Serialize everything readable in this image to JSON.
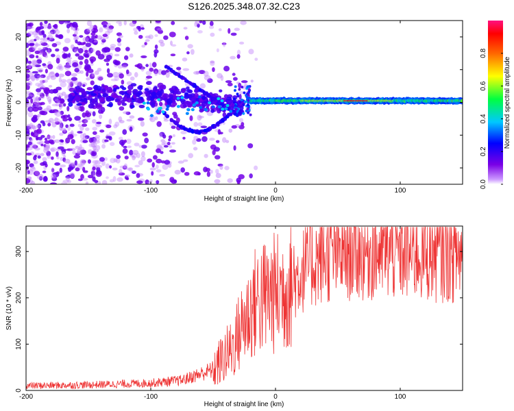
{
  "title": "S126.2025.348.07.32.C23",
  "colors": {
    "snr_line": "#ee3333",
    "axis": "#000000",
    "background": "#ffffff"
  },
  "chart_data": [
    {
      "type": "heatmap",
      "name": "spectrogram",
      "xlabel": "Height of straight line (km)",
      "ylabel": "Frequency (Hz)",
      "xlim": [
        -200,
        150
      ],
      "ylim": [
        -25,
        25
      ],
      "xticks": [
        -200,
        -100,
        0,
        100
      ],
      "yticks": [
        -20,
        -10,
        0,
        10,
        20
      ],
      "colorbar": {
        "label": "Normalized spectral amplitude",
        "range": [
          0,
          1
        ],
        "ticks": [
          "0.0",
          "0.2",
          "0.4",
          "0.6",
          "0.8"
        ],
        "tick_values": [
          0,
          0.2,
          0.4,
          0.6,
          0.8
        ],
        "colormap": "rainbow (violet-blue-cyan-green-yellow-red-magenta)"
      },
      "features": {
        "main_trace_frequency_hz": 0.5,
        "trace_start_km": -20,
        "scatter_region_km": [
          -200,
          -20
        ],
        "arc_track_km": [
          -90,
          -30
        ],
        "arc_peak_hz": 11
      }
    },
    {
      "type": "line",
      "name": "snr",
      "xlabel": "Height of straight line (km)",
      "ylabel": "SNR (10 * v/v)",
      "xlim": [
        -200,
        150
      ],
      "ylim": [
        0,
        355
      ],
      "xticks": [
        -200,
        -100,
        0,
        100
      ],
      "yticks": [
        0,
        100,
        200,
        300
      ],
      "trend": {
        "x": [
          -200,
          -150,
          -100,
          -75,
          -50,
          -35,
          -25,
          -15,
          -5,
          5,
          15,
          25,
          40,
          60,
          80,
          100,
          120,
          150
        ],
        "y": [
          10,
          12,
          16,
          22,
          45,
          90,
          150,
          195,
          205,
          215,
          235,
          270,
          290,
          300,
          300,
          298,
          296,
          293
        ]
      }
    }
  ]
}
